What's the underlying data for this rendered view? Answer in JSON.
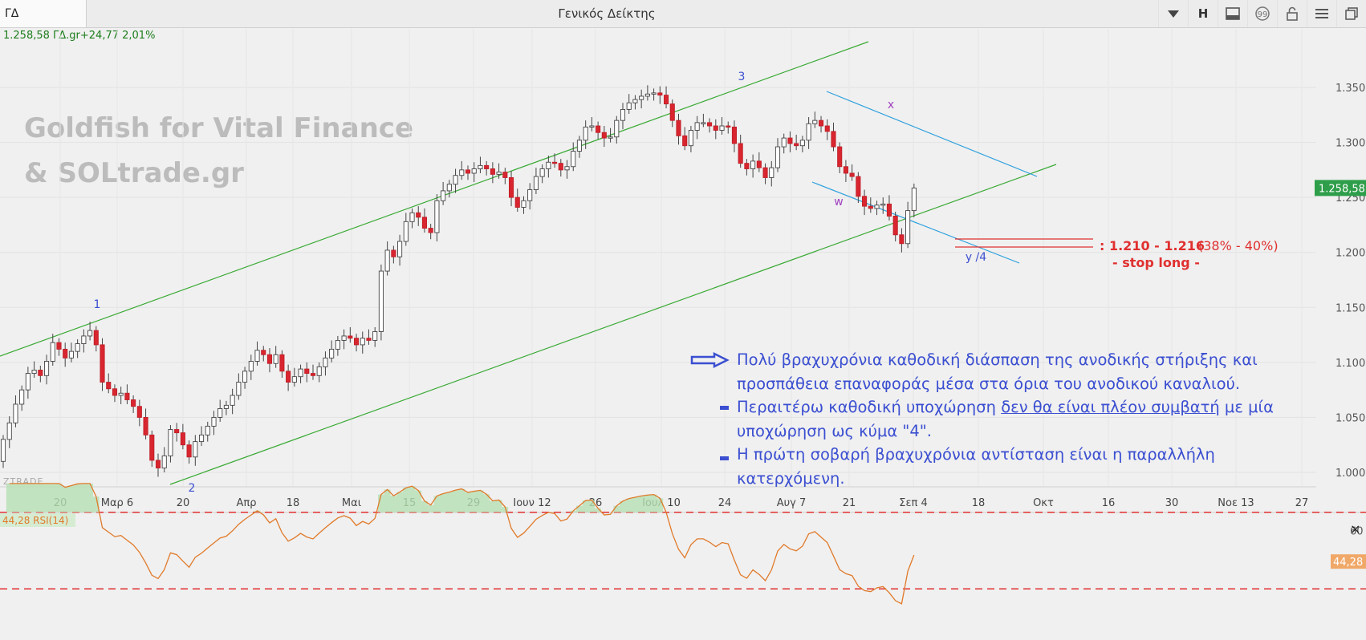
{
  "toolbar": {
    "symbol": "ΓΔ",
    "title": "Γενικός Δείκτης",
    "icons": [
      "chevron-down-icon",
      "letter-h-icon",
      "panel-icon",
      "comment-icon",
      "lock-icon",
      "menu-icon",
      "restore-window-icon"
    ],
    "h_label": "H"
  },
  "quote": "1.258,58 ΓΔ.gr+24,77 2,01%",
  "watermark": {
    "line1": "Goldfish for Vital Finance",
    "line2": "& SOLtrade.gr"
  },
  "provider": "ZTRADE",
  "annotation": {
    "p1": "Πολύ βραχυχρόνια καθοδική διάσπαση της ανοδικής στήριξης και προσπάθεια επαναφοράς μέσα στα όρια του ανοδικού καναλιού.",
    "p2_a": "Περαιτέρω καθοδική υποχώρηση ",
    "p2_u": "δεν θα είναι πλέον συμβατή",
    "p2_b": " με μία υποχώρηση ως κύμα \"4\".",
    "p3": "Η πρώτη σοβαρή βραχυχρόνια αντίσταση είναι η παραλλήλη κατερχόμενη."
  },
  "target": {
    "range": ": 1.210 - 1.216",
    "pct": "(38% - 40%)",
    "stop": "- stop long -"
  },
  "chart_data": {
    "type": "candlestick",
    "yticks": [
      "1.350",
      "1.300",
      "1.250",
      "1.200",
      "1.150",
      "1.100",
      "1.050",
      "1.000"
    ],
    "ytick_values": [
      1350,
      1300,
      1250,
      1200,
      1150,
      1100,
      1050,
      1000
    ],
    "last_price_label": "1.258,58",
    "xticks": [
      "20",
      "Μαρ 6",
      "20",
      "Απρ",
      "18",
      "Μαι",
      "15",
      "29",
      "Ιουν 12",
      "26",
      "Ιουλ 10",
      "24",
      "Αυγ 7",
      "21",
      "Σεπ 4",
      "18",
      "Οκτ",
      "16",
      "30",
      "Νοε 13",
      "27"
    ],
    "wave_labels": [
      "1",
      "2",
      "3",
      "x",
      "w",
      "y /4"
    ],
    "closes": [
      1030,
      1045,
      1062,
      1075,
      1090,
      1093,
      1088,
      1101,
      1118,
      1112,
      1104,
      1110,
      1117,
      1124,
      1129,
      1116,
      1082,
      1076,
      1070,
      1072,
      1066,
      1060,
      1050,
      1034,
      1011,
      1004,
      1015,
      1039,
      1036,
      1025,
      1014,
      1028,
      1034,
      1042,
      1050,
      1058,
      1061,
      1070,
      1082,
      1092,
      1101,
      1111,
      1107,
      1099,
      1107,
      1092,
      1082,
      1087,
      1094,
      1090,
      1088,
      1096,
      1104,
      1112,
      1120,
      1124,
      1122,
      1116,
      1122,
      1120,
      1128,
      1183,
      1202,
      1196,
      1210,
      1228,
      1236,
      1232,
      1222,
      1218,
      1247,
      1256,
      1262,
      1270,
      1275,
      1272,
      1276,
      1279,
      1276,
      1271,
      1273,
      1268,
      1250,
      1241,
      1247,
      1257,
      1269,
      1276,
      1282,
      1281,
      1275,
      1278,
      1292,
      1302,
      1314,
      1315,
      1309,
      1304,
      1305,
      1320,
      1330,
      1336,
      1339,
      1342,
      1344,
      1345,
      1343,
      1335,
      1320,
      1306,
      1297,
      1311,
      1318,
      1318,
      1315,
      1311,
      1315,
      1314,
      1299,
      1281,
      1276,
      1283,
      1277,
      1268,
      1277,
      1296,
      1304,
      1299,
      1297,
      1302,
      1317,
      1320,
      1315,
      1310,
      1296,
      1278,
      1272,
      1269,
      1251,
      1242,
      1240,
      1243,
      1244,
      1233,
      1216,
      1208,
      1238,
      1258.58
    ],
    "rsi": {
      "label": "44,28 RSI(14)",
      "last": "44,28",
      "levels": [
        70,
        30
      ],
      "ytick": "60"
    }
  }
}
